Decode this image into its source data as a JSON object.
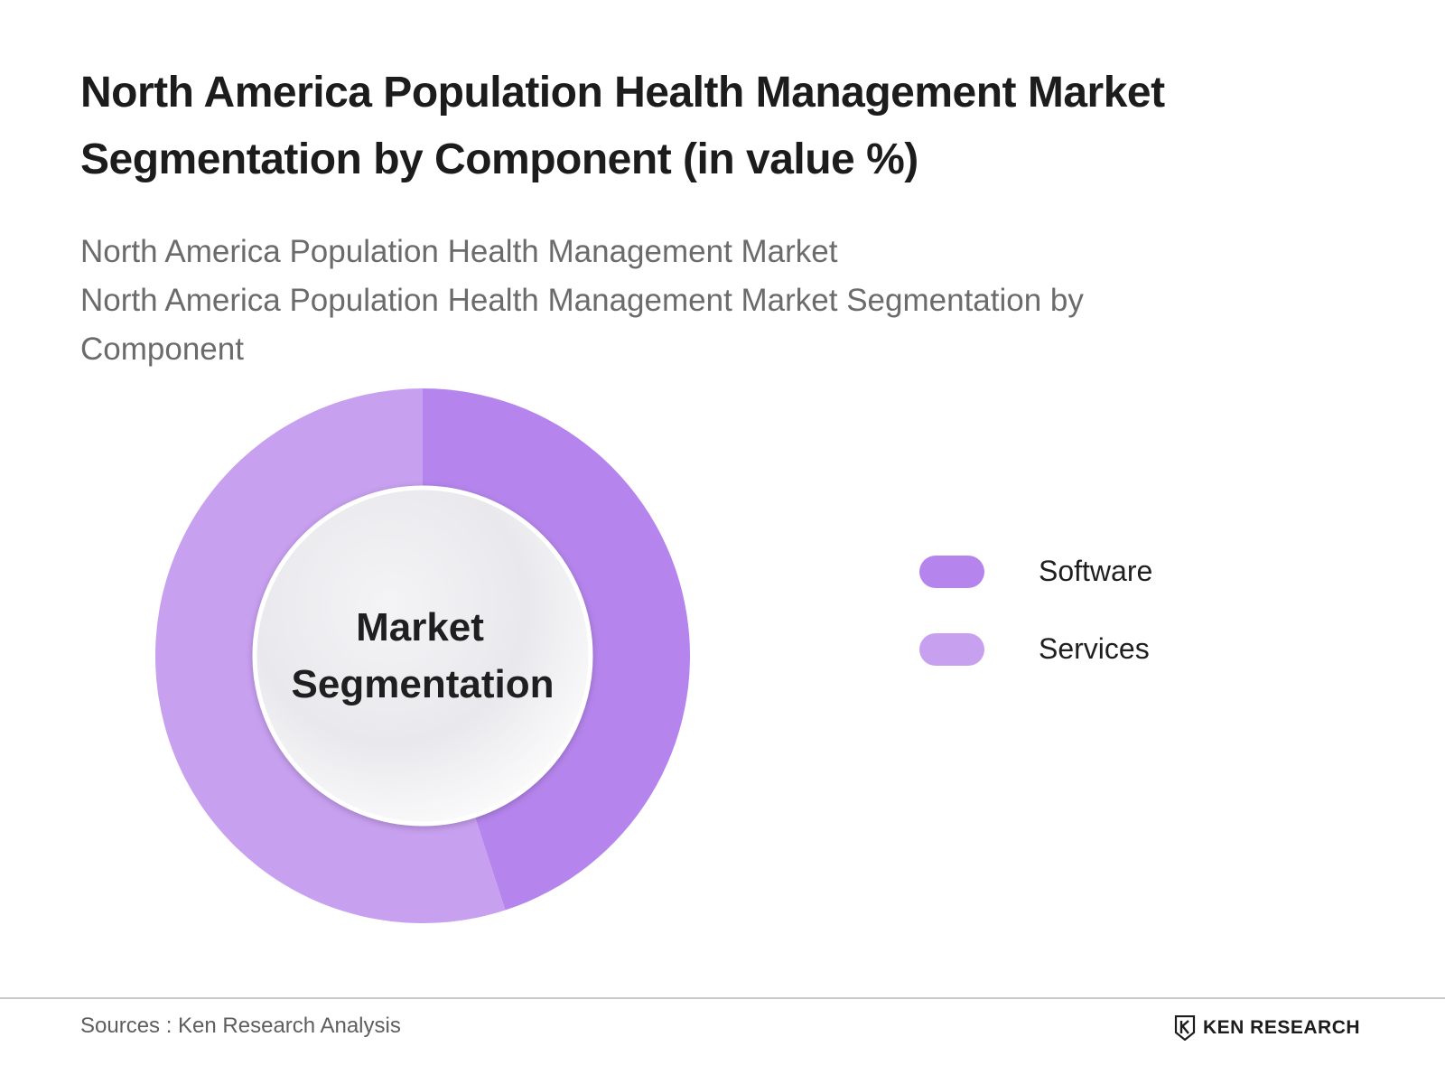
{
  "header": {
    "title_lines": [
      "North America Population Health Management Market",
      "Segmentation by Component (in value %)"
    ],
    "subtitle_lines": [
      "North America Population Health Management Market",
      "North America Population Health Management Market Segmentation by",
      "Component"
    ]
  },
  "chart_data": {
    "type": "pie",
    "variant": "donut",
    "title": "North America Population Health Management Market Segmentation by Component (in value %)",
    "center_label_lines": [
      "Market",
      "Segmentation"
    ],
    "categories": [
      "Software",
      "Services"
    ],
    "values": [
      45,
      55
    ],
    "unit": "%",
    "colors": [
      "#b585ed",
      "#c8a0f0"
    ],
    "legend_position": "right",
    "start_angle_deg": 0,
    "direction": "clockwise"
  },
  "legend": {
    "items": [
      {
        "label": "Software",
        "color": "#b585ed"
      },
      {
        "label": "Services",
        "color": "#c8a0f0"
      }
    ]
  },
  "footer": {
    "source": "Sources : Ken Research Analysis",
    "brand": "KEN RESEARCH",
    "brand_icon": "ken-research-logo-icon"
  }
}
